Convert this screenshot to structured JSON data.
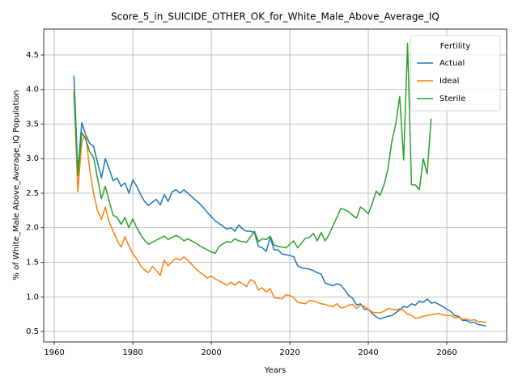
{
  "chart_data": {
    "type": "line",
    "title": "Score_5_in_SUICIDE_OTHER_OK_for_White_Male_Above_Average_IQ",
    "x_label": "Years",
    "y_label": "% of White_Male Above_Average_IQ Population",
    "legend_title": "Fertility",
    "legend": "upper right",
    "grid": true,
    "xlim": [
      1957.3,
      2075.25
    ],
    "ylim": [
      0.348,
      4.874
    ],
    "xticks": [
      1960,
      1980,
      2000,
      2020,
      2040,
      2060
    ],
    "yticks": [
      0.5,
      {
        "value": 1,
        "label": "1.0"
      },
      1.5,
      {
        "value": 2,
        "label": "2.0"
      },
      2.5,
      {
        "value": 3,
        "label": "3.0"
      },
      3.5,
      {
        "value": 4,
        "label": "4.0"
      },
      4.5
    ],
    "x": [
      1965,
      1966,
      1967,
      1968,
      1969,
      1970,
      1971,
      1972,
      1973,
      1974,
      1975,
      1976,
      1977,
      1978,
      1979,
      1980,
      1981,
      1982,
      1983,
      1984,
      1985,
      1986,
      1987,
      1988,
      1989,
      1990,
      1991,
      1992,
      1993,
      1994,
      1995,
      1996,
      1997,
      1998,
      1999,
      2000,
      2001,
      2002,
      2003,
      2004,
      2005,
      2006,
      2007,
      2008,
      2009,
      2010,
      2011,
      2012,
      2013,
      2014,
      2015,
      2016,
      2017,
      2018,
      2019,
      2020,
      2021,
      2022,
      2023,
      2024,
      2025,
      2026,
      2027,
      2028,
      2029,
      2030,
      2031,
      2032,
      2033,
      2034,
      2035,
      2036,
      2037,
      2038,
      2039,
      2040,
      2041,
      2042,
      2043,
      2044,
      2045,
      2046,
      2047,
      2048,
      2049,
      2050,
      2051,
      2052,
      2053,
      2054,
      2055,
      2056,
      2057,
      2058,
      2059,
      2060,
      2061,
      2062,
      2063,
      2064,
      2065,
      2066,
      2067,
      2068,
      2069,
      2070
    ],
    "series": [
      {
        "name": "Actual",
        "color": "#1f77b4",
        "values": [
          4.2,
          2.8,
          3.52,
          3.35,
          3.22,
          3.18,
          2.95,
          2.72,
          3.0,
          2.85,
          2.68,
          2.72,
          2.6,
          2.65,
          2.5,
          2.69,
          2.6,
          2.48,
          2.38,
          2.32,
          2.37,
          2.41,
          2.33,
          2.48,
          2.38,
          2.52,
          2.55,
          2.5,
          2.55,
          2.5,
          2.45,
          2.4,
          2.35,
          2.29,
          2.22,
          2.16,
          2.1,
          2.06,
          2.02,
          1.98,
          2.0,
          1.95,
          2.04,
          1.98,
          1.95,
          1.95,
          1.93,
          1.73,
          1.71,
          1.66,
          1.86,
          1.68,
          1.68,
          1.62,
          1.61,
          1.6,
          1.58,
          1.45,
          1.42,
          1.41,
          1.4,
          1.38,
          1.35,
          1.33,
          1.2,
          1.18,
          1.16,
          1.19,
          1.17,
          1.1,
          1.02,
          0.98,
          0.88,
          0.9,
          0.82,
          0.82,
          0.76,
          0.71,
          0.68,
          0.7,
          0.72,
          0.73,
          0.77,
          0.81,
          0.86,
          0.85,
          0.9,
          0.88,
          0.94,
          0.92,
          0.97,
          0.91,
          0.92,
          0.89,
          0.86,
          0.82,
          0.79,
          0.73,
          0.72,
          0.66,
          0.66,
          0.63,
          0.63,
          0.6,
          0.59,
          0.58
        ]
      },
      {
        "name": "Ideal",
        "color": "#ff7f0e",
        "values": [
          4.0,
          2.52,
          3.25,
          3.35,
          2.85,
          2.5,
          2.25,
          2.12,
          2.3,
          2.08,
          1.95,
          1.82,
          1.72,
          1.87,
          1.74,
          1.62,
          1.55,
          1.45,
          1.39,
          1.35,
          1.44,
          1.38,
          1.31,
          1.53,
          1.45,
          1.51,
          1.56,
          1.53,
          1.58,
          1.53,
          1.47,
          1.41,
          1.36,
          1.32,
          1.27,
          1.3,
          1.26,
          1.23,
          1.2,
          1.17,
          1.21,
          1.17,
          1.22,
          1.19,
          1.15,
          1.25,
          1.22,
          1.1,
          1.13,
          1.07,
          1.12,
          0.99,
          0.98,
          0.97,
          1.03,
          1.02,
          0.99,
          0.92,
          0.91,
          0.9,
          0.95,
          0.94,
          0.92,
          0.9,
          0.89,
          0.87,
          0.86,
          0.9,
          0.84,
          0.85,
          0.88,
          0.89,
          0.83,
          0.88,
          0.86,
          0.82,
          0.78,
          0.77,
          0.77,
          0.79,
          0.83,
          0.82,
          0.81,
          0.83,
          0.8,
          0.75,
          0.73,
          0.69,
          0.7,
          0.72,
          0.73,
          0.74,
          0.75,
          0.76,
          0.74,
          0.73,
          0.73,
          0.7,
          0.7,
          0.68,
          0.68,
          0.66,
          0.67,
          0.64,
          0.64,
          0.63
        ]
      },
      {
        "name": "Sterile",
        "color": "#2ca02c",
        "values": [
          3.97,
          2.75,
          3.38,
          3.28,
          3.1,
          3.02,
          2.72,
          2.42,
          2.6,
          2.38,
          2.18,
          2.15,
          2.05,
          2.15,
          2.0,
          2.13,
          2.0,
          1.9,
          1.82,
          1.76,
          1.79,
          1.82,
          1.85,
          1.88,
          1.83,
          1.86,
          1.89,
          1.86,
          1.81,
          1.84,
          1.81,
          1.78,
          1.74,
          1.71,
          1.68,
          1.65,
          1.63,
          1.73,
          1.77,
          1.8,
          1.79,
          1.84,
          1.81,
          1.8,
          1.79,
          1.87,
          1.95,
          1.8,
          1.84,
          1.83,
          1.88,
          1.75,
          1.73,
          1.72,
          1.71,
          1.76,
          1.81,
          1.71,
          1.78,
          1.85,
          1.86,
          1.92,
          1.81,
          1.93,
          1.81,
          1.9,
          2.03,
          2.15,
          2.28,
          2.26,
          2.23,
          2.18,
          2.14,
          2.3,
          2.26,
          2.2,
          2.35,
          2.53,
          2.47,
          2.62,
          2.85,
          3.25,
          3.5,
          3.9,
          2.98,
          4.67,
          2.62,
          2.62,
          2.55,
          3.0,
          2.78,
          3.58,
          null,
          null,
          null,
          null,
          null,
          null,
          null,
          null,
          null,
          null,
          null,
          null,
          null,
          null
        ]
      }
    ]
  }
}
